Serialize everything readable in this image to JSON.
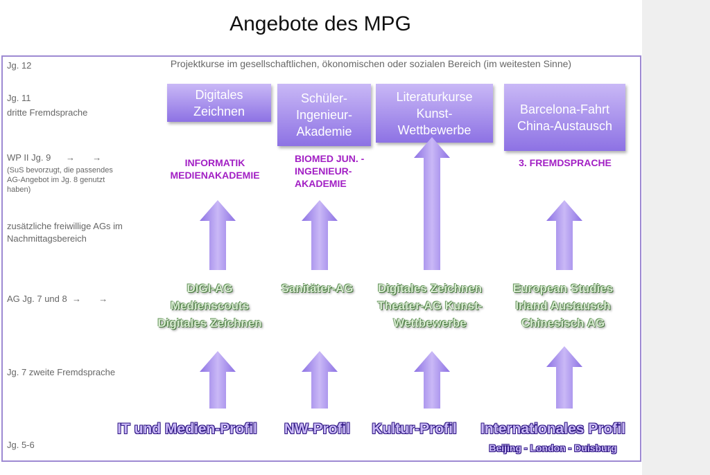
{
  "title": "Angebote des MPG",
  "rows": {
    "jg12": "Jg. 12",
    "jg11": "Jg. 11",
    "dritte": "dritte Fremdsprache",
    "wp": "WP II Jg. 9      →       →",
    "wp_note": "(SuS bevorzugt, die passendes AG-Angebot im Jg. 8 genutzt haben)",
    "zusatz": "zusätzliche freiwillige AGs im Nachmittagsbereich",
    "ag": "AG Jg. 7 und 8  →       →",
    "jg7": "Jg. 7 zweite Fremdsprache",
    "jg56": "Jg. 5-6"
  },
  "projektkurse": "Projektkurse im gesellschaftlichen, ökonomischen oder sozialen Bereich (im weitesten Sinne)",
  "boxes": [
    "Digitales Zeichnen",
    "Schüler-Ingenieur-Akademie",
    "Literaturkurse Kunst-Wettbewerbe",
    "Barcelona-Fahrt China-Austausch"
  ],
  "wp_items": [
    "INFORMATIK MEDIENAKADEMIE",
    "BIOMED JUN. -INGENIEUR-AKADEMIE",
    "3. FREMDSPRACHE"
  ],
  "ags": [
    "DIGI-AG Medienscouts Digitales Zeichnen",
    "Sanitäter-AG",
    "Digitales Zeichnen Theater-AG Kunst-Wettbewerbe",
    "European Studies Irland Austausch Chinesisch AG"
  ],
  "profiles": [
    "IT und Medien-Profil",
    "NW-Profil",
    "Kultur-Profil",
    "Internationales Profil"
  ],
  "profile_sub": "Beijing - London - Duisburg",
  "colors": {
    "box": "#a98ef0",
    "magenta": "#a21fc4",
    "border": "#9d89d2"
  }
}
